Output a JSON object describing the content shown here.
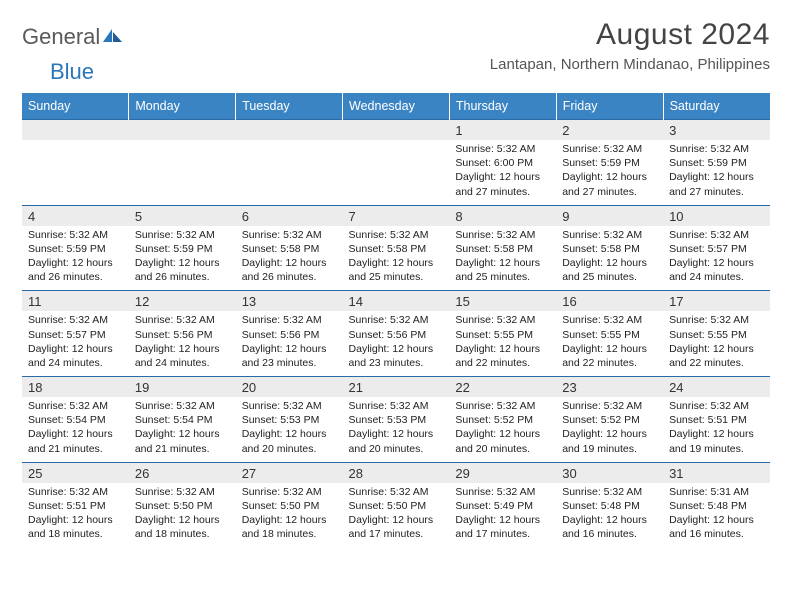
{
  "logo": {
    "word1": "General",
    "word2": "Blue"
  },
  "title": "August 2024",
  "location": "Lantapan, Northern Mindanao, Philippines",
  "colors": {
    "header_bg": "#3b84c4",
    "header_text": "#ffffff",
    "rule": "#2a6aa5",
    "daynum_bg": "#ececec",
    "logo_gray": "#5a5a5a",
    "logo_blue": "#2a77bb"
  },
  "dayNames": [
    "Sunday",
    "Monday",
    "Tuesday",
    "Wednesday",
    "Thursday",
    "Friday",
    "Saturday"
  ],
  "weeks": [
    [
      {
        "empty": true
      },
      {
        "empty": true
      },
      {
        "empty": true
      },
      {
        "empty": true
      },
      {
        "n": "1",
        "sunrise": "5:32 AM",
        "sunset": "6:00 PM",
        "daylight": "12 hours and 27 minutes."
      },
      {
        "n": "2",
        "sunrise": "5:32 AM",
        "sunset": "5:59 PM",
        "daylight": "12 hours and 27 minutes."
      },
      {
        "n": "3",
        "sunrise": "5:32 AM",
        "sunset": "5:59 PM",
        "daylight": "12 hours and 27 minutes."
      }
    ],
    [
      {
        "n": "4",
        "sunrise": "5:32 AM",
        "sunset": "5:59 PM",
        "daylight": "12 hours and 26 minutes."
      },
      {
        "n": "5",
        "sunrise": "5:32 AM",
        "sunset": "5:59 PM",
        "daylight": "12 hours and 26 minutes."
      },
      {
        "n": "6",
        "sunrise": "5:32 AM",
        "sunset": "5:58 PM",
        "daylight": "12 hours and 26 minutes."
      },
      {
        "n": "7",
        "sunrise": "5:32 AM",
        "sunset": "5:58 PM",
        "daylight": "12 hours and 25 minutes."
      },
      {
        "n": "8",
        "sunrise": "5:32 AM",
        "sunset": "5:58 PM",
        "daylight": "12 hours and 25 minutes."
      },
      {
        "n": "9",
        "sunrise": "5:32 AM",
        "sunset": "5:58 PM",
        "daylight": "12 hours and 25 minutes."
      },
      {
        "n": "10",
        "sunrise": "5:32 AM",
        "sunset": "5:57 PM",
        "daylight": "12 hours and 24 minutes."
      }
    ],
    [
      {
        "n": "11",
        "sunrise": "5:32 AM",
        "sunset": "5:57 PM",
        "daylight": "12 hours and 24 minutes."
      },
      {
        "n": "12",
        "sunrise": "5:32 AM",
        "sunset": "5:56 PM",
        "daylight": "12 hours and 24 minutes."
      },
      {
        "n": "13",
        "sunrise": "5:32 AM",
        "sunset": "5:56 PM",
        "daylight": "12 hours and 23 minutes."
      },
      {
        "n": "14",
        "sunrise": "5:32 AM",
        "sunset": "5:56 PM",
        "daylight": "12 hours and 23 minutes."
      },
      {
        "n": "15",
        "sunrise": "5:32 AM",
        "sunset": "5:55 PM",
        "daylight": "12 hours and 22 minutes."
      },
      {
        "n": "16",
        "sunrise": "5:32 AM",
        "sunset": "5:55 PM",
        "daylight": "12 hours and 22 minutes."
      },
      {
        "n": "17",
        "sunrise": "5:32 AM",
        "sunset": "5:55 PM",
        "daylight": "12 hours and 22 minutes."
      }
    ],
    [
      {
        "n": "18",
        "sunrise": "5:32 AM",
        "sunset": "5:54 PM",
        "daylight": "12 hours and 21 minutes."
      },
      {
        "n": "19",
        "sunrise": "5:32 AM",
        "sunset": "5:54 PM",
        "daylight": "12 hours and 21 minutes."
      },
      {
        "n": "20",
        "sunrise": "5:32 AM",
        "sunset": "5:53 PM",
        "daylight": "12 hours and 20 minutes."
      },
      {
        "n": "21",
        "sunrise": "5:32 AM",
        "sunset": "5:53 PM",
        "daylight": "12 hours and 20 minutes."
      },
      {
        "n": "22",
        "sunrise": "5:32 AM",
        "sunset": "5:52 PM",
        "daylight": "12 hours and 20 minutes."
      },
      {
        "n": "23",
        "sunrise": "5:32 AM",
        "sunset": "5:52 PM",
        "daylight": "12 hours and 19 minutes."
      },
      {
        "n": "24",
        "sunrise": "5:32 AM",
        "sunset": "5:51 PM",
        "daylight": "12 hours and 19 minutes."
      }
    ],
    [
      {
        "n": "25",
        "sunrise": "5:32 AM",
        "sunset": "5:51 PM",
        "daylight": "12 hours and 18 minutes."
      },
      {
        "n": "26",
        "sunrise": "5:32 AM",
        "sunset": "5:50 PM",
        "daylight": "12 hours and 18 minutes."
      },
      {
        "n": "27",
        "sunrise": "5:32 AM",
        "sunset": "5:50 PM",
        "daylight": "12 hours and 18 minutes."
      },
      {
        "n": "28",
        "sunrise": "5:32 AM",
        "sunset": "5:50 PM",
        "daylight": "12 hours and 17 minutes."
      },
      {
        "n": "29",
        "sunrise": "5:32 AM",
        "sunset": "5:49 PM",
        "daylight": "12 hours and 17 minutes."
      },
      {
        "n": "30",
        "sunrise": "5:32 AM",
        "sunset": "5:48 PM",
        "daylight": "12 hours and 16 minutes."
      },
      {
        "n": "31",
        "sunrise": "5:31 AM",
        "sunset": "5:48 PM",
        "daylight": "12 hours and 16 minutes."
      }
    ]
  ],
  "labels": {
    "sunrise": "Sunrise:",
    "sunset": "Sunset:",
    "daylight": "Daylight:"
  }
}
